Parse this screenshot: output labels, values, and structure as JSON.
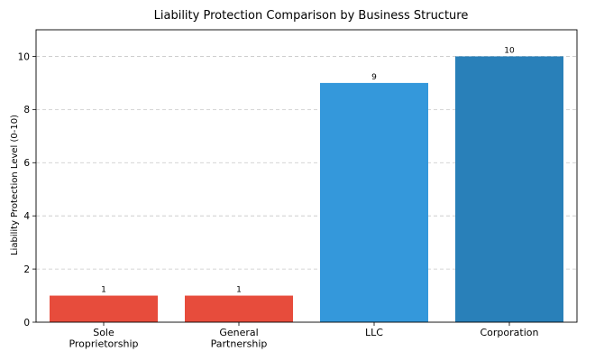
{
  "chart_data": {
    "type": "bar",
    "title": "Liability Protection Comparison by Business Structure",
    "xlabel": "",
    "ylabel": "Liability Protection Level (0-10)",
    "categories": [
      "Sole\nProprietorship",
      "General\nPartnership",
      "LLC",
      "Corporation"
    ],
    "values": [
      1,
      1,
      9,
      10
    ],
    "colors": [
      "#e74c3c",
      "#e74c3c",
      "#3498db",
      "#2980b9"
    ],
    "ylim": [
      0,
      11
    ],
    "yticks": [
      0,
      2,
      4,
      6,
      8,
      10
    ],
    "grid": "y-dashed",
    "data_labels": true
  }
}
